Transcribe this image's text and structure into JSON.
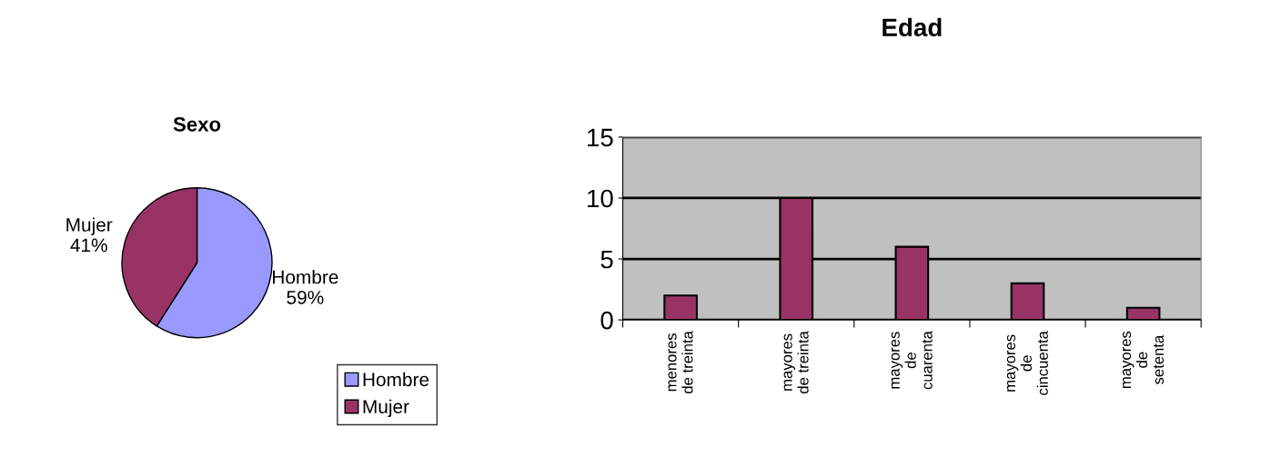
{
  "chart_data": [
    {
      "type": "pie",
      "title": "Sexo",
      "categories": [
        "Hombre",
        "Mujer"
      ],
      "values": [
        59,
        41
      ],
      "colors": [
        "#9999ff",
        "#993366"
      ],
      "value_labels": [
        "59%",
        "41%"
      ],
      "legend": "bottom right"
    },
    {
      "type": "bar",
      "title": "Edad",
      "categories": [
        "menores\nde treinta",
        "mayores\nde treinta",
        "mayores\nde\ncuarenta",
        "mayores\nde\ncincuenta",
        "mayores\nde\nsetenta"
      ],
      "values": [
        2,
        10,
        6,
        3,
        1
      ],
      "color": "#993366",
      "ylim": [
        0,
        15
      ],
      "yticks": [
        0,
        5,
        10,
        15
      ],
      "grid": "y"
    }
  ]
}
